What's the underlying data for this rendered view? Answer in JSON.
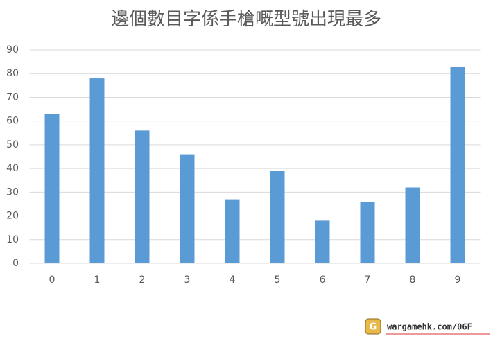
{
  "chart_data": {
    "type": "bar",
    "title": "邊個數目字係手槍嘅型號出現最多",
    "categories": [
      "0",
      "1",
      "2",
      "3",
      "4",
      "5",
      "6",
      "7",
      "8",
      "9"
    ],
    "values": [
      63,
      78,
      56,
      46,
      27,
      39,
      18,
      26,
      32,
      83
    ],
    "color": "#5b9bd5",
    "ylim": [
      0,
      90
    ],
    "yticks": [
      0,
      10,
      20,
      30,
      40,
      50,
      60,
      70,
      80,
      90
    ],
    "grid": true,
    "watermark": "wargamehk.com/06F"
  }
}
